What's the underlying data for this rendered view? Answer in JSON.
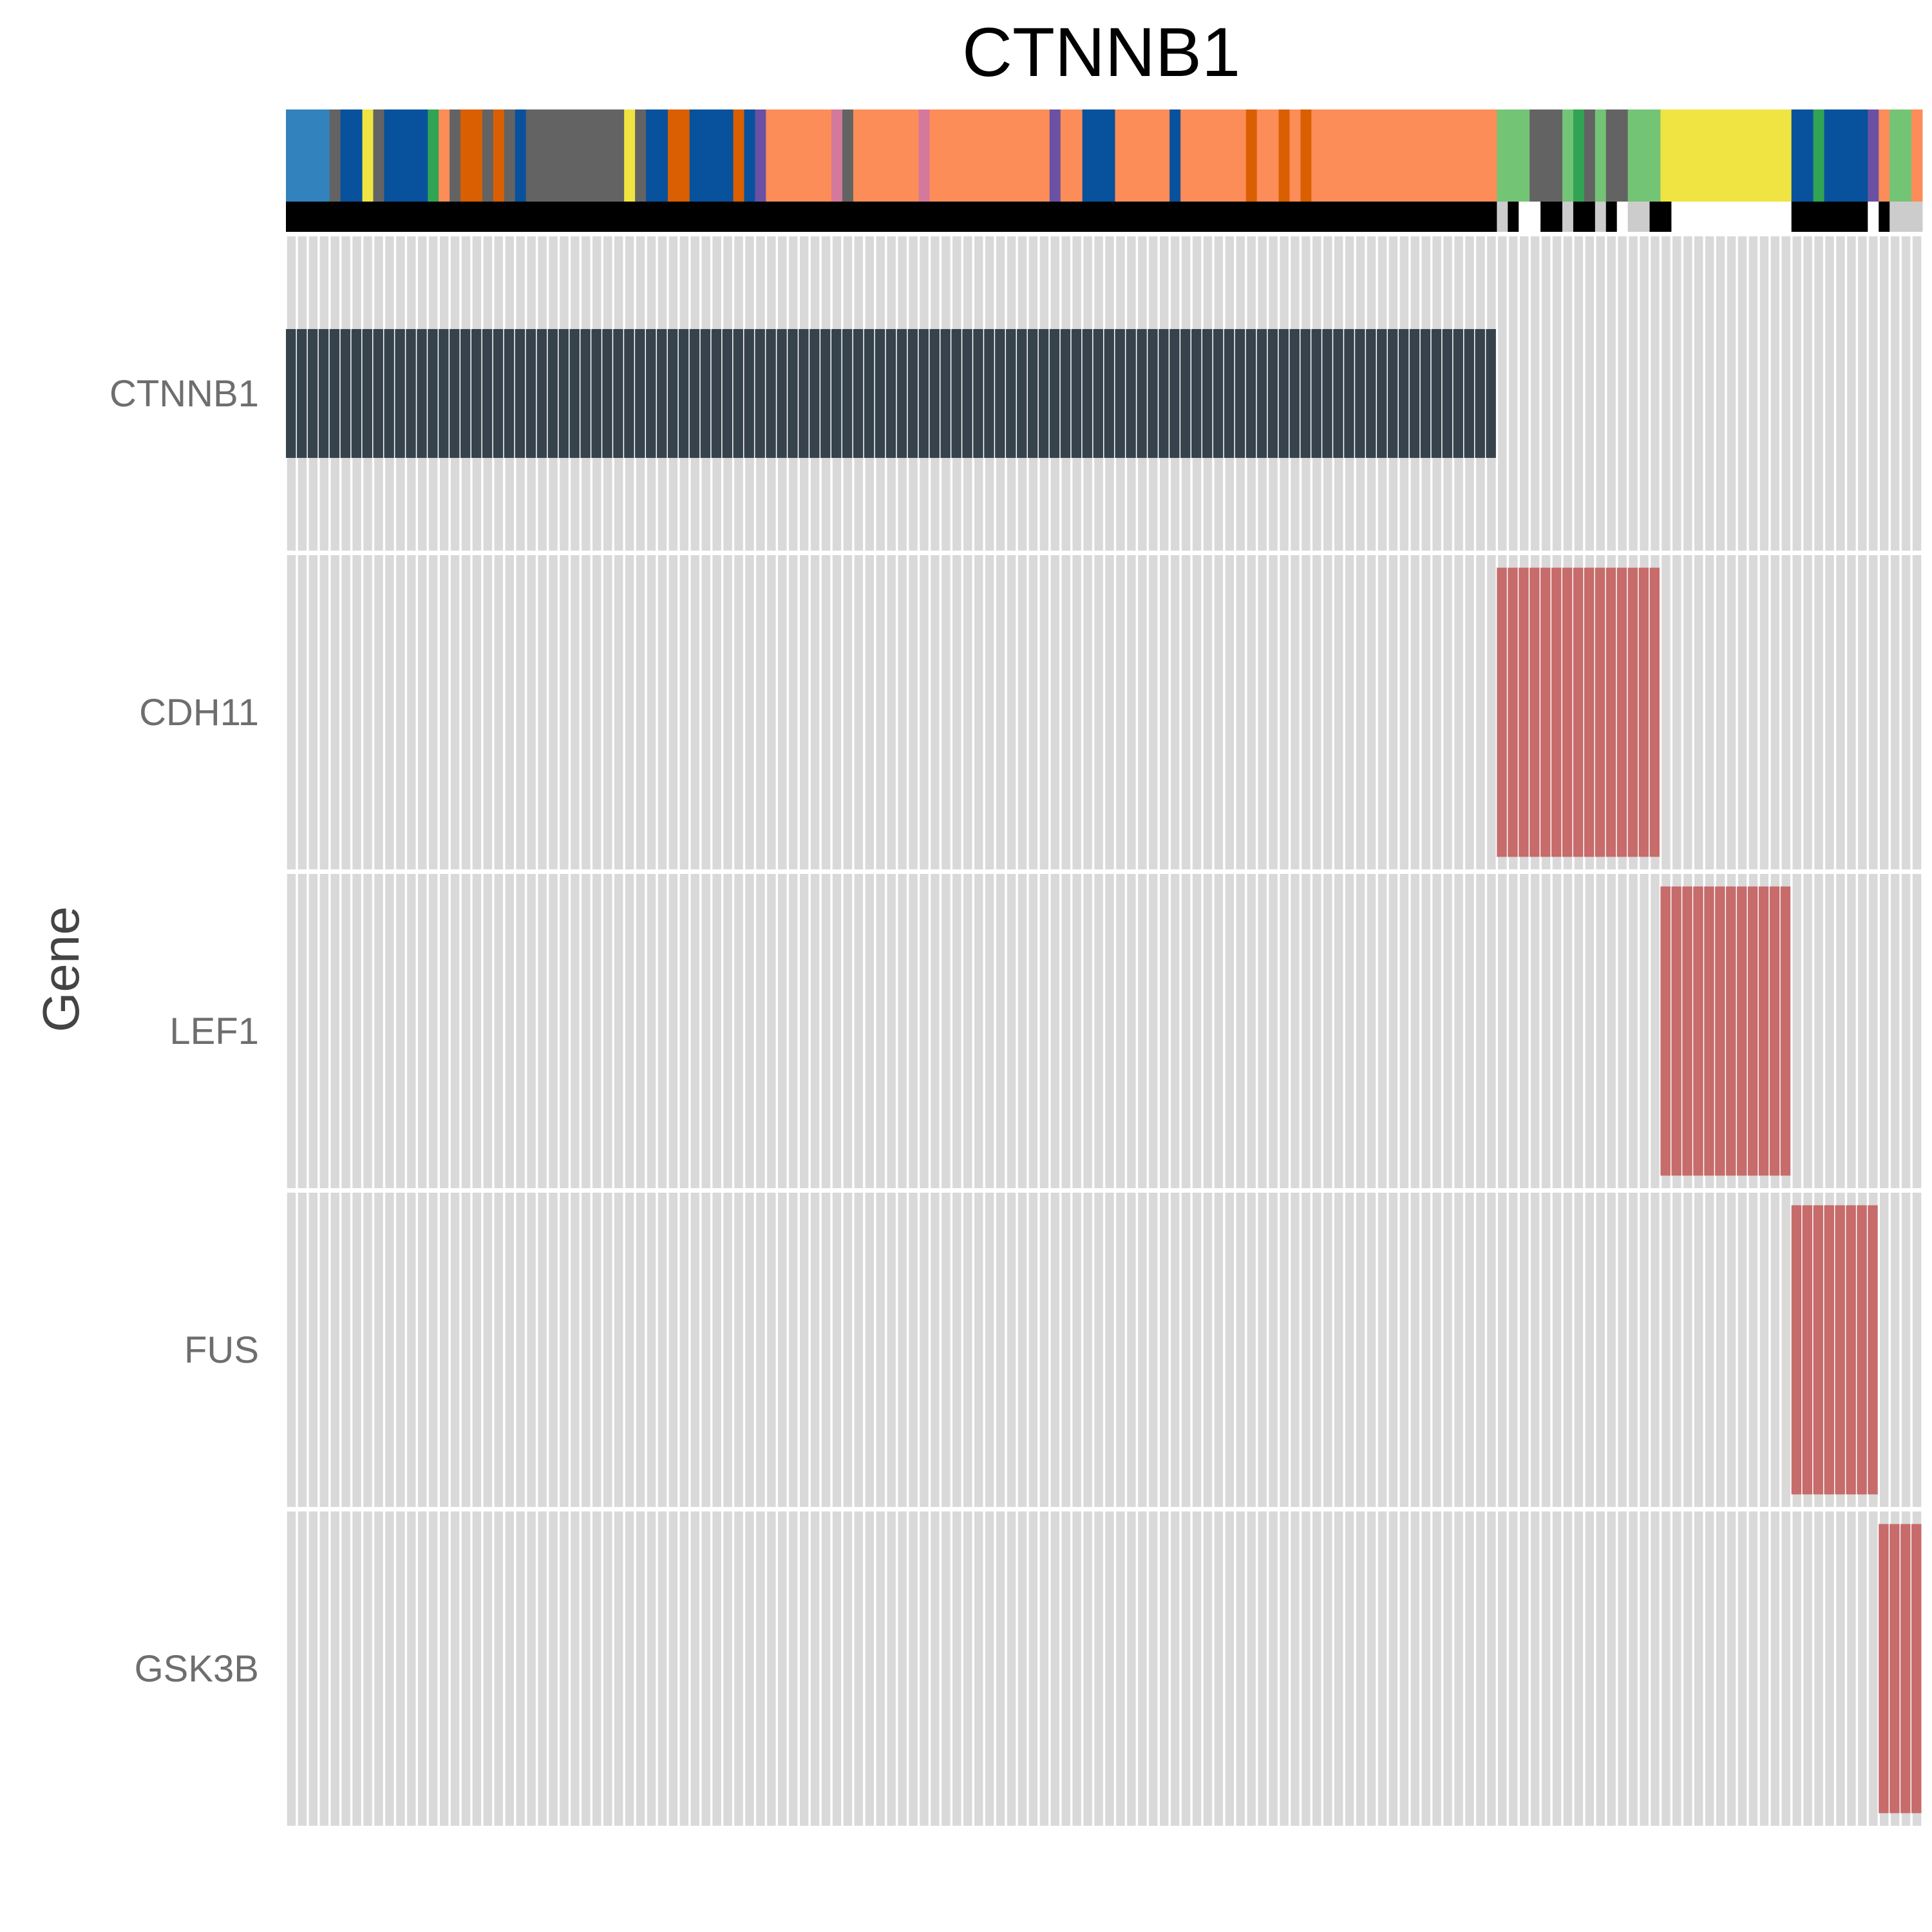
{
  "chart_data": {
    "type": "heatmap",
    "title": "CTNNB1",
    "xlabel": "",
    "ylabel": "Gene",
    "genes": [
      "CTNNB1",
      "CDH11",
      "LEF1",
      "FUS",
      "GSK3B"
    ],
    "n_samples": 150,
    "colors": {
      "background_cell": "#d9d9d9",
      "ctnnb1_alteration": "#36424c",
      "other_alteration": "#c76b6b",
      "status_present": "#000000",
      "status_absent": "#cccccc",
      "status_missing": "#ffffff"
    },
    "alterations": [
      {
        "gene": "CTNNB1",
        "sample_start": 0,
        "sample_end": 110,
        "color": "#36424c",
        "height": "medium"
      },
      {
        "gene": "CDH11",
        "sample_start": 111,
        "sample_end": 125,
        "color": "#c76b6b",
        "height": "tall"
      },
      {
        "gene": "LEF1",
        "sample_start": 126,
        "sample_end": 137,
        "color": "#c76b6b",
        "height": "tall"
      },
      {
        "gene": "FUS",
        "sample_start": 138,
        "sample_end": 145,
        "color": "#c76b6b",
        "height": "tall"
      },
      {
        "gene": "GSK3B",
        "sample_start": 146,
        "sample_end": 149,
        "color": "#c76b6b",
        "height": "tall"
      }
    ],
    "annotation_top": [
      {
        "from": 0,
        "to": 3,
        "color": "#3182bd"
      },
      {
        "from": 4,
        "to": 4,
        "color": "#636363"
      },
      {
        "from": 5,
        "to": 6,
        "color": "#08519c"
      },
      {
        "from": 7,
        "to": 7,
        "color": "#f0e442"
      },
      {
        "from": 8,
        "to": 8,
        "color": "#636363"
      },
      {
        "from": 9,
        "to": 12,
        "color": "#08519c"
      },
      {
        "from": 13,
        "to": 13,
        "color": "#31a354"
      },
      {
        "from": 14,
        "to": 14,
        "color": "#fc8d59"
      },
      {
        "from": 15,
        "to": 15,
        "color": "#636363"
      },
      {
        "from": 16,
        "to": 17,
        "color": "#d95f02"
      },
      {
        "from": 18,
        "to": 18,
        "color": "#636363"
      },
      {
        "from": 19,
        "to": 19,
        "color": "#d95f02"
      },
      {
        "from": 20,
        "to": 20,
        "color": "#636363"
      },
      {
        "from": 21,
        "to": 21,
        "color": "#08519c"
      },
      {
        "from": 22,
        "to": 30,
        "color": "#636363"
      },
      {
        "from": 31,
        "to": 31,
        "color": "#f0e442"
      },
      {
        "from": 32,
        "to": 32,
        "color": "#636363"
      },
      {
        "from": 33,
        "to": 34,
        "color": "#08519c"
      },
      {
        "from": 35,
        "to": 36,
        "color": "#d95f02"
      },
      {
        "from": 37,
        "to": 40,
        "color": "#08519c"
      },
      {
        "from": 41,
        "to": 41,
        "color": "#d95f02"
      },
      {
        "from": 42,
        "to": 42,
        "color": "#08519c"
      },
      {
        "from": 43,
        "to": 43,
        "color": "#6a51a3"
      },
      {
        "from": 44,
        "to": 49,
        "color": "#fc8d59"
      },
      {
        "from": 50,
        "to": 50,
        "color": "#d4789c"
      },
      {
        "from": 51,
        "to": 51,
        "color": "#636363"
      },
      {
        "from": 52,
        "to": 57,
        "color": "#fc8d59"
      },
      {
        "from": 58,
        "to": 58,
        "color": "#d4789c"
      },
      {
        "from": 59,
        "to": 69,
        "color": "#fc8d59"
      },
      {
        "from": 70,
        "to": 70,
        "color": "#6a51a3"
      },
      {
        "from": 71,
        "to": 72,
        "color": "#fc8d59"
      },
      {
        "from": 73,
        "to": 75,
        "color": "#08519c"
      },
      {
        "from": 76,
        "to": 80,
        "color": "#fc8d59"
      },
      {
        "from": 81,
        "to": 81,
        "color": "#08519c"
      },
      {
        "from": 82,
        "to": 87,
        "color": "#fc8d59"
      },
      {
        "from": 88,
        "to": 88,
        "color": "#d95f02"
      },
      {
        "from": 89,
        "to": 90,
        "color": "#fc8d59"
      },
      {
        "from": 91,
        "to": 91,
        "color": "#d95f02"
      },
      {
        "from": 92,
        "to": 92,
        "color": "#fc8d59"
      },
      {
        "from": 93,
        "to": 93,
        "color": "#d95f02"
      },
      {
        "from": 94,
        "to": 110,
        "color": "#fc8d59"
      },
      {
        "from": 111,
        "to": 113,
        "color": "#74c476"
      },
      {
        "from": 114,
        "to": 116,
        "color": "#636363"
      },
      {
        "from": 117,
        "to": 117,
        "color": "#74c476"
      },
      {
        "from": 118,
        "to": 118,
        "color": "#31a354"
      },
      {
        "from": 119,
        "to": 119,
        "color": "#636363"
      },
      {
        "from": 120,
        "to": 120,
        "color": "#74c476"
      },
      {
        "from": 121,
        "to": 122,
        "color": "#636363"
      },
      {
        "from": 123,
        "to": 125,
        "color": "#74c476"
      },
      {
        "from": 126,
        "to": 137,
        "color": "#f0e442"
      },
      {
        "from": 138,
        "to": 139,
        "color": "#08519c"
      },
      {
        "from": 140,
        "to": 140,
        "color": "#31a354"
      },
      {
        "from": 141,
        "to": 144,
        "color": "#08519c"
      },
      {
        "from": 145,
        "to": 145,
        "color": "#6a51a3"
      },
      {
        "from": 146,
        "to": 146,
        "color": "#fc8d59"
      },
      {
        "from": 147,
        "to": 148,
        "color": "#74c476"
      },
      {
        "from": 149,
        "to": 149,
        "color": "#fc8d59"
      }
    ],
    "annotation_status": [
      {
        "from": 0,
        "to": 110,
        "color": "#000000"
      },
      {
        "from": 111,
        "to": 111,
        "color": "#cccccc"
      },
      {
        "from": 112,
        "to": 112,
        "color": "#000000"
      },
      {
        "from": 113,
        "to": 114,
        "color": "#ffffff"
      },
      {
        "from": 115,
        "to": 116,
        "color": "#000000"
      },
      {
        "from": 117,
        "to": 117,
        "color": "#cccccc"
      },
      {
        "from": 118,
        "to": 119,
        "color": "#000000"
      },
      {
        "from": 120,
        "to": 120,
        "color": "#cccccc"
      },
      {
        "from": 121,
        "to": 121,
        "color": "#000000"
      },
      {
        "from": 122,
        "to": 122,
        "color": "#ffffff"
      },
      {
        "from": 123,
        "to": 124,
        "color": "#cccccc"
      },
      {
        "from": 125,
        "to": 126,
        "color": "#000000"
      },
      {
        "from": 127,
        "to": 137,
        "color": "#ffffff"
      },
      {
        "from": 138,
        "to": 144,
        "color": "#000000"
      },
      {
        "from": 145,
        "to": 145,
        "color": "#ffffff"
      },
      {
        "from": 146,
        "to": 146,
        "color": "#000000"
      },
      {
        "from": 147,
        "to": 149,
        "color": "#cccccc"
      }
    ]
  }
}
